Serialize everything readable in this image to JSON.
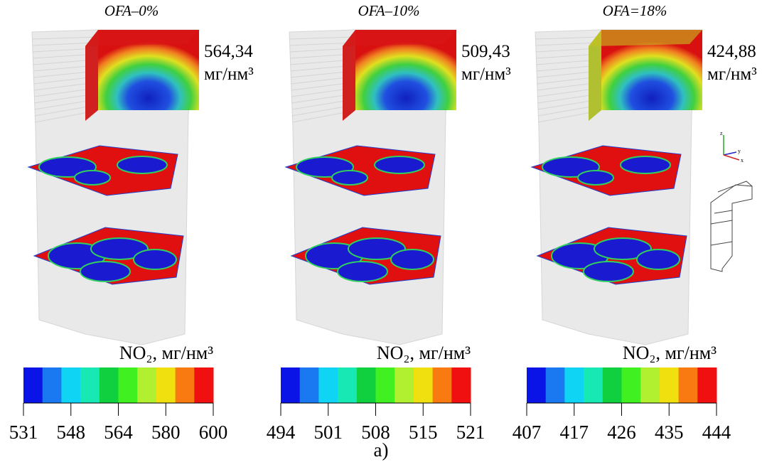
{
  "panels": [
    {
      "title": "OFA–0%",
      "value": "564,34",
      "unit": "мг/нм³",
      "colorbar": {
        "label": "NO₂, мг/нм³",
        "ticks": [
          "531",
          "548",
          "564",
          "580",
          "600"
        ]
      }
    },
    {
      "title": "OFA–10%",
      "value": "509,43",
      "unit": "мг/нм³",
      "colorbar": {
        "label": "NO₂, мг/нм³",
        "ticks": [
          "494",
          "501",
          "508",
          "515",
          "521"
        ]
      }
    },
    {
      "title": "OFA=18%",
      "value": "424,88",
      "unit": "мг/нм³",
      "colorbar": {
        "label": "NO₂, мг/нм³",
        "ticks": [
          "407",
          "417",
          "426",
          "435",
          "444"
        ]
      }
    }
  ],
  "caption": "a)"
}
